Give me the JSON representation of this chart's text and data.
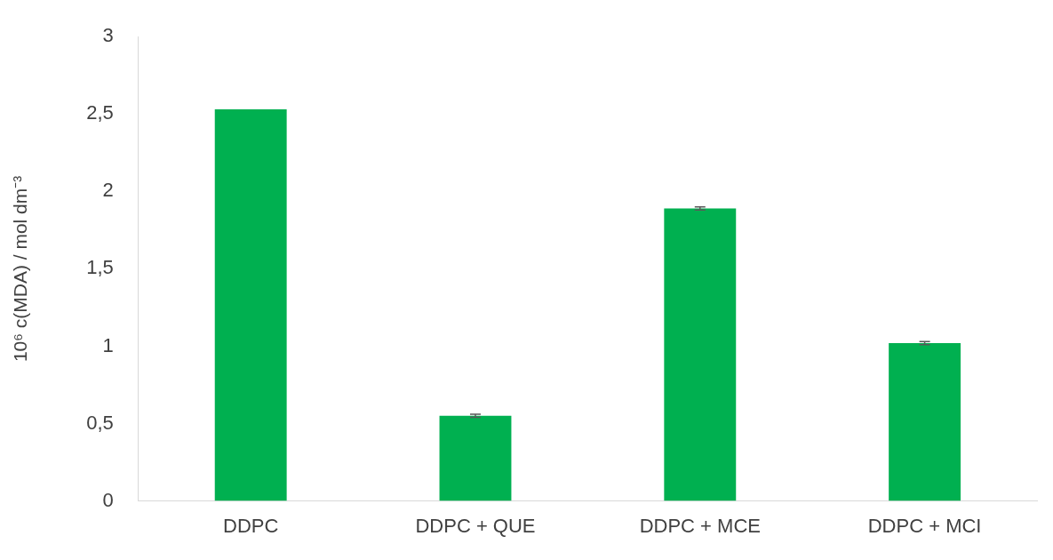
{
  "chart_data": {
    "type": "bar",
    "ylabel": "10⁶ c(MDA) / mol dm⁻³",
    "categories": [
      "DDPC",
      "DDPC + QUE",
      "DDPC + MCE",
      "DDPC + MCI"
    ],
    "values": [
      2.53,
      0.55,
      1.89,
      1.02
    ],
    "errors": [
      null,
      0.01,
      0.01,
      0.01
    ],
    "color": "#00b050",
    "ylim": [
      0,
      3
    ],
    "yticks": [
      0,
      {
        "value": 0.5,
        "label": "0,5"
      },
      1,
      {
        "value": 1.5,
        "label": "1,5"
      },
      2,
      {
        "value": 2.5,
        "label": "2,5"
      },
      3
    ],
    "grid": false,
    "legend": false
  }
}
